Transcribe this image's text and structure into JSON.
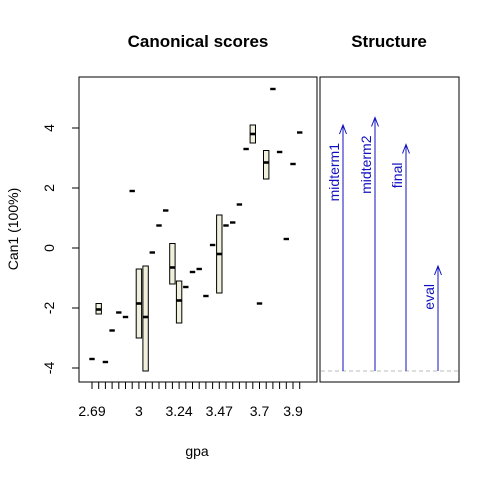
{
  "chart_data": [
    {
      "type": "boxplot",
      "title": "Canonical scores",
      "xlabel": "gpa",
      "ylabel": "Can1 (100%)",
      "ylim": [
        -4.5,
        5.5
      ],
      "xlim": [
        2.6,
        4.0
      ],
      "y_ticks": [
        -4,
        -2,
        0,
        2,
        4
      ],
      "y_tick_labels": [
        "-4",
        "-2",
        "0",
        "2",
        "4"
      ],
      "x_tick_positions": [
        2.69,
        2.73,
        2.78,
        2.82,
        2.86,
        2.91,
        2.95,
        3.0,
        3.04,
        3.08,
        3.13,
        3.17,
        3.21,
        3.24,
        3.28,
        3.32,
        3.36,
        3.4,
        3.44,
        3.47,
        3.51,
        3.55,
        3.59,
        3.63,
        3.67,
        3.7,
        3.74,
        3.78,
        3.82,
        3.86,
        3.9,
        3.94
      ],
      "x_labels": [
        "2.69",
        "3",
        "3.24",
        "3.47",
        "3.7",
        "3.9"
      ],
      "x_label_values": [
        2.69,
        3.0,
        3.24,
        3.47,
        3.7,
        3.9
      ],
      "groups": [
        {
          "x": 2.69,
          "values": [
            -3.7
          ]
        },
        {
          "x": 2.73,
          "min": -2.2,
          "q1": -2.2,
          "median": -2.05,
          "q3": -1.85,
          "max": -1.85
        },
        {
          "x": 2.78,
          "values": [
            -3.8
          ]
        },
        {
          "x": 2.82,
          "values": [
            -2.75
          ]
        },
        {
          "x": 2.86,
          "values": [
            -2.15
          ]
        },
        {
          "x": 2.91,
          "values": [
            -2.3
          ]
        },
        {
          "x": 2.95,
          "values": [
            1.9
          ]
        },
        {
          "x": 3.0,
          "min": -3.0,
          "q1": -3.0,
          "median": -1.85,
          "q3": -0.7,
          "max": -0.7
        },
        {
          "x": 3.04,
          "min": -4.1,
          "q1": -4.1,
          "median": -2.3,
          "q3": -0.6,
          "max": -0.6
        },
        {
          "x": 3.08,
          "values": [
            -0.15
          ]
        },
        {
          "x": 3.13,
          "values": [
            0.75
          ]
        },
        {
          "x": 3.17,
          "values": [
            1.25
          ]
        },
        {
          "x": 3.21,
          "min": -1.2,
          "q1": -1.2,
          "median": -0.65,
          "q3": 0.15,
          "max": 0.15
        },
        {
          "x": 3.24,
          "min": -2.5,
          "q1": -2.5,
          "median": -1.75,
          "q3": -1.1,
          "max": -1.1
        },
        {
          "x": 3.28,
          "values": [
            -1.3
          ]
        },
        {
          "x": 3.32,
          "values": [
            -0.8
          ]
        },
        {
          "x": 3.36,
          "values": [
            -0.7
          ]
        },
        {
          "x": 3.4,
          "values": [
            -1.6
          ]
        },
        {
          "x": 3.44,
          "values": [
            0.1
          ]
        },
        {
          "x": 3.47,
          "min": -1.5,
          "q1": -1.5,
          "median": -0.2,
          "q3": 1.1,
          "max": 1.1
        },
        {
          "x": 3.51,
          "values": [
            0.75
          ]
        },
        {
          "x": 3.55,
          "values": [
            0.85
          ]
        },
        {
          "x": 3.59,
          "values": [
            1.45
          ]
        },
        {
          "x": 3.63,
          "values": [
            3.3
          ]
        },
        {
          "x": 3.67,
          "min": 3.5,
          "q1": 3.5,
          "median": 3.8,
          "q3": 4.1,
          "max": 4.1
        },
        {
          "x": 3.7,
          "values": [
            -1.85
          ]
        },
        {
          "x": 3.74,
          "min": 2.3,
          "q1": 2.3,
          "median": 2.85,
          "q3": 3.25,
          "max": 3.25
        },
        {
          "x": 3.78,
          "values": [
            5.3
          ]
        },
        {
          "x": 3.82,
          "values": [
            3.2
          ]
        },
        {
          "x": 3.86,
          "values": [
            0.3
          ]
        },
        {
          "x": 3.9,
          "values": [
            2.8
          ]
        },
        {
          "x": 3.94,
          "values": [
            3.85
          ]
        }
      ]
    },
    {
      "type": "vector",
      "title": "Structure",
      "color": "#1010c0",
      "baseline": -4.1,
      "baseline_color": "#bbbbbb",
      "vectors": [
        {
          "name": "midterm1",
          "length": 4.1
        },
        {
          "name": "midterm2",
          "length": 4.35
        },
        {
          "name": "final",
          "length": 3.45
        },
        {
          "name": "eval",
          "length": -0.6
        }
      ]
    }
  ]
}
